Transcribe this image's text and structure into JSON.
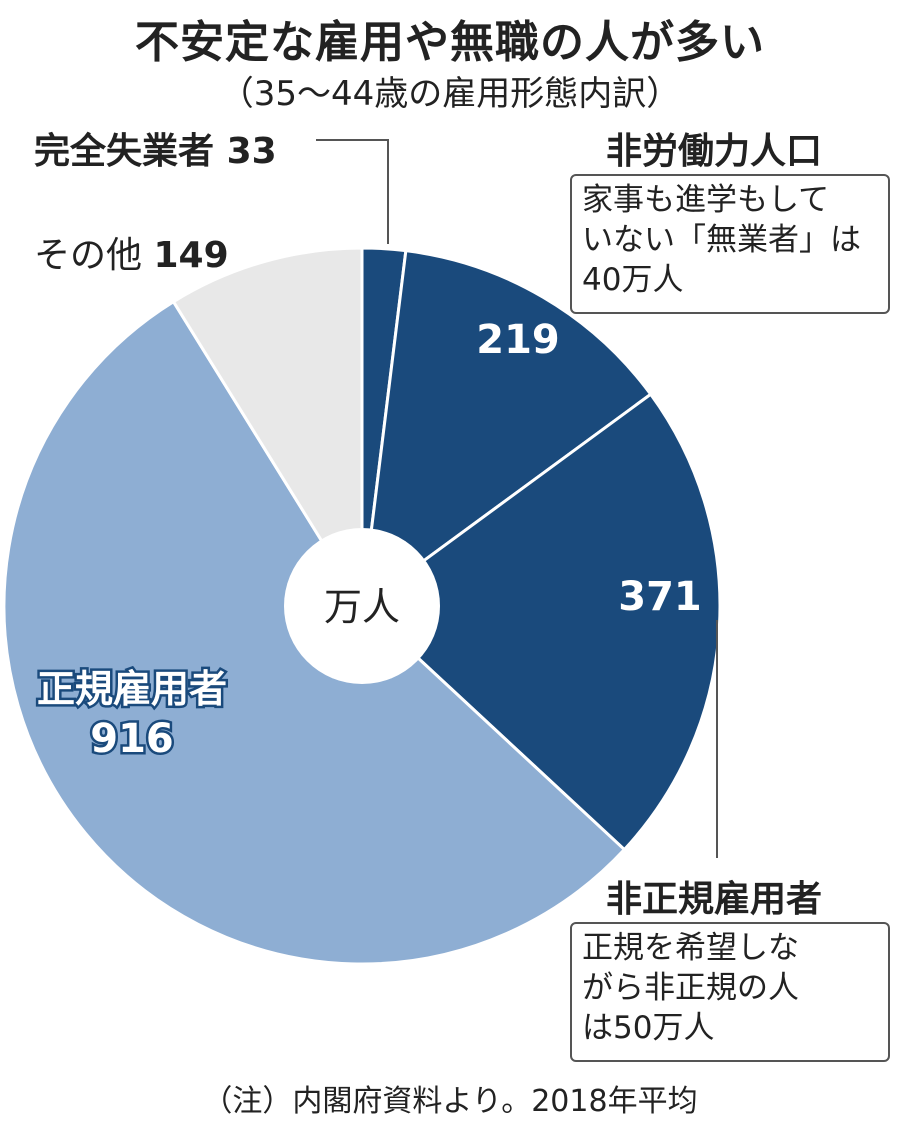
{
  "title": "不安定な雇用や無職の人が多い",
  "subtitle": "（35～44歳の雇用形態内訳）",
  "footnote": "（注）内閣府資料より。2018年平均",
  "chart_data": {
    "type": "pie",
    "unit": "万人",
    "slices": [
      {
        "label": "完全失業者",
        "value": 33,
        "color": "#1a4a7c",
        "value_text": "33"
      },
      {
        "label": "非労働力人口",
        "value": 219,
        "color": "#1a4a7c",
        "value_text": "219"
      },
      {
        "label": "非正規雇用者",
        "value": 371,
        "color": "#1a4a7c",
        "value_text": "371"
      },
      {
        "label": "正規雇用者",
        "value": 916,
        "color": "#8eaed3",
        "value_text": "916"
      },
      {
        "label": "その他",
        "value": 149,
        "color": "#e8e8e8",
        "value_text": "149"
      }
    ]
  },
  "labels": {
    "unemployed": "完全失業者",
    "unemployed_value": "33",
    "other": "その他",
    "other_value": "149",
    "not_in_labor": "非労働力人口",
    "not_in_labor_value": "219",
    "non_regular": "非正規雇用者",
    "non_regular_value": "371",
    "regular": "正規雇用者",
    "regular_value": "916",
    "center_unit": "万人"
  },
  "notes": {
    "not_in_labor": "家事も進学もして\nいない「無業者」は\n40万人",
    "non_regular": "正規を希望しな\nがら非正規の人\nは50万人"
  },
  "colors": {
    "dark_blue": "#1a4a7c",
    "light_blue": "#8eaed3",
    "light_gray": "#e8e8e8",
    "divider": "#ffffff"
  }
}
